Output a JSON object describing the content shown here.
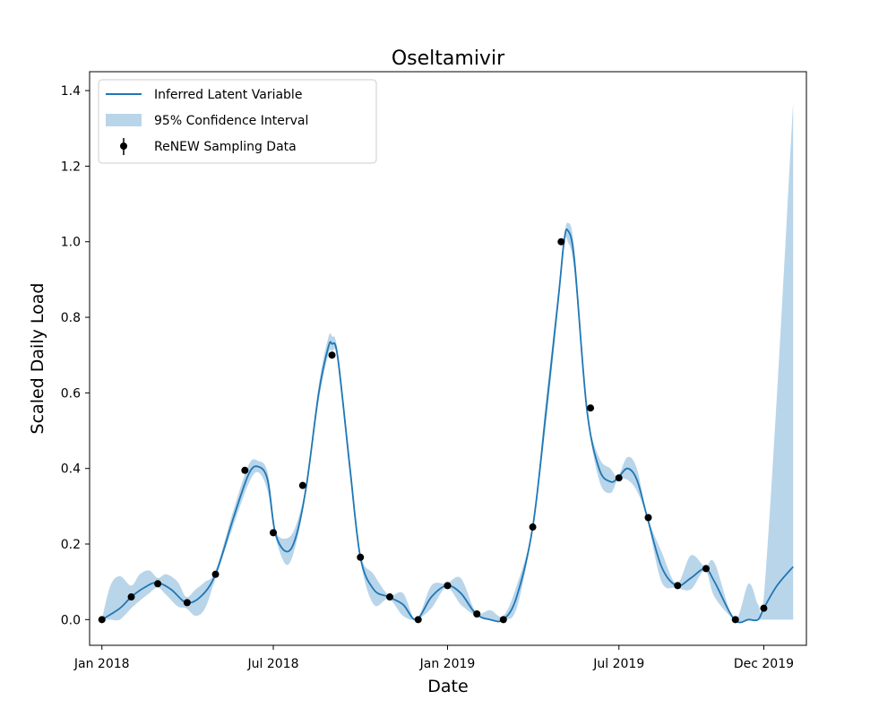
{
  "chart_data": {
    "type": "line",
    "title": "Oseltamivir",
    "xlabel": "Date",
    "ylabel": "Scaled Daily Load",
    "x_axis_type": "date",
    "xlim": [
      "2017-12-19",
      "2020-01-15"
    ],
    "ylim": [
      -0.068,
      1.45
    ],
    "grid": false,
    "legend_placement": "top-left",
    "x_ticks": [
      {
        "date": "2018-01-01",
        "label": "Jan 2018"
      },
      {
        "date": "2018-07-01",
        "label": "Jul 2018"
      },
      {
        "date": "2019-01-01",
        "label": "Jan 2019"
      },
      {
        "date": "2019-07-01",
        "label": "Jul 2019"
      },
      {
        "date": "2019-12-01",
        "label": "Dec 2019"
      }
    ],
    "y_ticks": [
      {
        "value": 0.0,
        "label": "0.0"
      },
      {
        "value": 0.2,
        "label": "0.2"
      },
      {
        "value": 0.4,
        "label": "0.4"
      },
      {
        "value": 0.6,
        "label": "0.6"
      },
      {
        "value": 0.8,
        "label": "0.8"
      },
      {
        "value": 1.0,
        "label": "1.0"
      },
      {
        "value": 1.2,
        "label": "1.2"
      },
      {
        "value": 1.4,
        "label": "1.4"
      }
    ],
    "series": [
      {
        "name": "Inferred Latent Variable",
        "kind": "line",
        "color": "#1f77b4",
        "points": [
          [
            "2018-01-01",
            0.0
          ],
          [
            "2018-01-20",
            0.03
          ],
          [
            "2018-02-01",
            0.06
          ],
          [
            "2018-02-15",
            0.085
          ],
          [
            "2018-02-28",
            0.098
          ],
          [
            "2018-03-15",
            0.08
          ],
          [
            "2018-03-31",
            0.045
          ],
          [
            "2018-04-15",
            0.06
          ],
          [
            "2018-05-01",
            0.12
          ],
          [
            "2018-05-20",
            0.27
          ],
          [
            "2018-06-05",
            0.385
          ],
          [
            "2018-06-15",
            0.405
          ],
          [
            "2018-06-25",
            0.37
          ],
          [
            "2018-07-03",
            0.23
          ],
          [
            "2018-07-15",
            0.18
          ],
          [
            "2018-07-25",
            0.22
          ],
          [
            "2018-08-05",
            0.355
          ],
          [
            "2018-08-18",
            0.6
          ],
          [
            "2018-08-28",
            0.72
          ],
          [
            "2018-09-01",
            0.73
          ],
          [
            "2018-09-07",
            0.695
          ],
          [
            "2018-09-20",
            0.4
          ],
          [
            "2018-10-01",
            0.165
          ],
          [
            "2018-10-15",
            0.08
          ],
          [
            "2018-10-31",
            0.06
          ],
          [
            "2018-11-15",
            0.04
          ],
          [
            "2018-11-29",
            0.0
          ],
          [
            "2018-12-15",
            0.06
          ],
          [
            "2018-12-31",
            0.09
          ],
          [
            "2019-01-15",
            0.07
          ],
          [
            "2019-01-31",
            0.015
          ],
          [
            "2019-02-15",
            0.0
          ],
          [
            "2019-03-01",
            0.0
          ],
          [
            "2019-03-15",
            0.06
          ],
          [
            "2019-04-01",
            0.245
          ],
          [
            "2019-04-15",
            0.55
          ],
          [
            "2019-04-28",
            0.85
          ],
          [
            "2019-05-04",
            1.0
          ],
          [
            "2019-05-08",
            1.03
          ],
          [
            "2019-05-15",
            0.95
          ],
          [
            "2019-05-28",
            0.56
          ],
          [
            "2019-06-10",
            0.4
          ],
          [
            "2019-06-22",
            0.365
          ],
          [
            "2019-06-30",
            0.375
          ],
          [
            "2019-07-10",
            0.4
          ],
          [
            "2019-07-20",
            0.37
          ],
          [
            "2019-07-31",
            0.27
          ],
          [
            "2019-08-15",
            0.14
          ],
          [
            "2019-08-31",
            0.09
          ],
          [
            "2019-09-15",
            0.11
          ],
          [
            "2019-09-30",
            0.135
          ],
          [
            "2019-10-10",
            0.1
          ],
          [
            "2019-10-31",
            0.0
          ],
          [
            "2019-11-15",
            0.0
          ],
          [
            "2019-11-25",
            0.0
          ],
          [
            "2019-12-01",
            0.03
          ],
          [
            "2019-12-15",
            0.09
          ],
          [
            "2020-01-01",
            0.14
          ]
        ]
      },
      {
        "name": "95% Confidence Interval",
        "kind": "band",
        "color": "#b9d5ea",
        "points": [
          [
            "2018-01-01",
            0.0,
            0.0
          ],
          [
            "2018-01-10",
            -0.0,
            0.09
          ],
          [
            "2018-01-20",
            0.0,
            0.115
          ],
          [
            "2018-02-01",
            0.03,
            0.09
          ],
          [
            "2018-02-10",
            0.05,
            0.12
          ],
          [
            "2018-02-20",
            0.07,
            0.13
          ],
          [
            "2018-03-01",
            0.085,
            0.11
          ],
          [
            "2018-03-10",
            0.065,
            0.12
          ],
          [
            "2018-03-22",
            0.035,
            0.1
          ],
          [
            "2018-03-31",
            0.03,
            0.06
          ],
          [
            "2018-04-10",
            0.01,
            0.08
          ],
          [
            "2018-04-20",
            0.03,
            0.1
          ],
          [
            "2018-05-01",
            0.11,
            0.13
          ],
          [
            "2018-05-20",
            0.25,
            0.29
          ],
          [
            "2018-06-05",
            0.36,
            0.41
          ],
          [
            "2018-06-15",
            0.39,
            0.42
          ],
          [
            "2018-06-25",
            0.34,
            0.39
          ],
          [
            "2018-07-03",
            0.22,
            0.24
          ],
          [
            "2018-07-15",
            0.145,
            0.215
          ],
          [
            "2018-07-25",
            0.2,
            0.25
          ],
          [
            "2018-08-05",
            0.345,
            0.365
          ],
          [
            "2018-08-18",
            0.58,
            0.62
          ],
          [
            "2018-08-28",
            0.7,
            0.745
          ],
          [
            "2018-09-01",
            0.71,
            0.75
          ],
          [
            "2018-09-07",
            0.685,
            0.71
          ],
          [
            "2018-09-20",
            0.38,
            0.42
          ],
          [
            "2018-10-01",
            0.155,
            0.175
          ],
          [
            "2018-10-15",
            0.04,
            0.12
          ],
          [
            "2018-10-31",
            0.055,
            0.065
          ],
          [
            "2018-11-15",
            0.01,
            0.07
          ],
          [
            "2018-11-29",
            0.0,
            0.0
          ],
          [
            "2018-12-15",
            0.03,
            0.09
          ],
          [
            "2018-12-31",
            0.085,
            0.095
          ],
          [
            "2019-01-15",
            0.04,
            0.11
          ],
          [
            "2019-01-31",
            0.01,
            0.02
          ],
          [
            "2019-02-15",
            0.0,
            0.025
          ],
          [
            "2019-03-01",
            0.0,
            0.01
          ],
          [
            "2019-03-15",
            0.03,
            0.09
          ],
          [
            "2019-04-01",
            0.24,
            0.25
          ],
          [
            "2019-04-15",
            0.52,
            0.58
          ],
          [
            "2019-04-28",
            0.83,
            0.87
          ],
          [
            "2019-05-04",
            0.995,
            1.005
          ],
          [
            "2019-05-08",
            1.0,
            1.05
          ],
          [
            "2019-05-15",
            0.92,
            0.98
          ],
          [
            "2019-05-28",
            0.555,
            0.565
          ],
          [
            "2019-06-10",
            0.37,
            0.43
          ],
          [
            "2019-06-22",
            0.335,
            0.4
          ],
          [
            "2019-06-30",
            0.37,
            0.38
          ],
          [
            "2019-07-10",
            0.37,
            0.43
          ],
          [
            "2019-07-20",
            0.34,
            0.4
          ],
          [
            "2019-07-31",
            0.265,
            0.275
          ],
          [
            "2019-08-15",
            0.1,
            0.18
          ],
          [
            "2019-08-31",
            0.085,
            0.095
          ],
          [
            "2019-09-15",
            0.08,
            0.17
          ],
          [
            "2019-09-30",
            0.13,
            0.14
          ],
          [
            "2019-10-10",
            0.06,
            0.15
          ],
          [
            "2019-10-31",
            0.0,
            0.0
          ],
          [
            "2019-11-15",
            0.0,
            0.095
          ],
          [
            "2019-11-25",
            0.0,
            0.04
          ],
          [
            "2019-12-01",
            0.0,
            0.06
          ],
          [
            "2019-12-15",
            0.0,
            0.6
          ],
          [
            "2020-01-01",
            0.0,
            1.37
          ]
        ]
      },
      {
        "name": "ReNEW Sampling Data",
        "kind": "scatter",
        "color": "#000000",
        "points": [
          [
            "2018-01-01",
            0.0
          ],
          [
            "2018-02-01",
            0.06
          ],
          [
            "2018-03-01",
            0.095
          ],
          [
            "2018-04-01",
            0.045
          ],
          [
            "2018-05-01",
            0.12
          ],
          [
            "2018-06-01",
            0.395
          ],
          [
            "2018-07-01",
            0.23
          ],
          [
            "2018-08-01",
            0.355
          ],
          [
            "2018-09-01",
            0.7
          ],
          [
            "2018-10-01",
            0.165
          ],
          [
            "2018-11-01",
            0.06
          ],
          [
            "2018-12-01",
            0.0
          ],
          [
            "2019-01-01",
            0.09
          ],
          [
            "2019-02-01",
            0.015
          ],
          [
            "2019-03-01",
            0.0
          ],
          [
            "2019-04-01",
            0.245
          ],
          [
            "2019-05-01",
            1.0
          ],
          [
            "2019-06-01",
            0.56
          ],
          [
            "2019-07-01",
            0.375
          ],
          [
            "2019-08-01",
            0.27
          ],
          [
            "2019-09-01",
            0.09
          ],
          [
            "2019-10-01",
            0.135
          ],
          [
            "2019-11-01",
            0.0
          ],
          [
            "2019-12-01",
            0.03
          ]
        ]
      }
    ]
  }
}
